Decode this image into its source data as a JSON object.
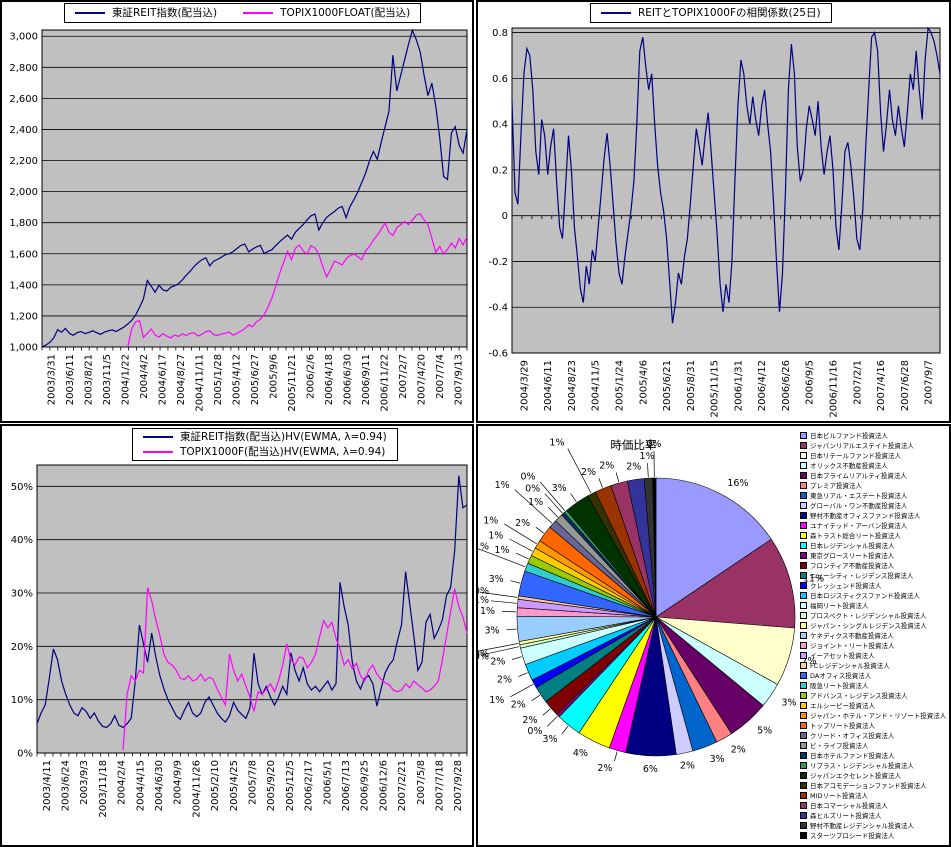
{
  "colors": {
    "plot_bg": "#C0C0C0",
    "grid": "#000000",
    "navy": "#000080",
    "magenta": "#FF00FF",
    "panel_bg": "#FFFFFF"
  },
  "chart_data": [
    {
      "id": "price-index",
      "type": "line",
      "legend": [
        {
          "label": "東証REIT指数(配当込)",
          "color": "#000080"
        },
        {
          "label": "TOPIX1000FLOAT(配当込)",
          "color": "#FF00FF"
        }
      ],
      "ylim": [
        1000,
        3040
      ],
      "grid": true,
      "x_minor_ticks": 54,
      "y_ticks": [
        {
          "v": 3000,
          "t": "3,000"
        },
        {
          "v": 2800,
          "t": "2,800"
        },
        {
          "v": 2600,
          "t": "2,600"
        },
        {
          "v": 2400,
          "t": "2,400"
        },
        {
          "v": 2200,
          "t": "2,200"
        },
        {
          "v": 2000,
          "t": "2,000"
        },
        {
          "v": 1800,
          "t": "1,800"
        },
        {
          "v": 1600,
          "t": "1,600"
        },
        {
          "v": 1400,
          "t": "1,400"
        },
        {
          "v": 1200,
          "t": "1,200"
        },
        {
          "v": 1000,
          "t": "1,000"
        }
      ],
      "x_tick_labels": [
        "2003/3/31",
        "2003/6/11",
        "2003/8/21",
        "2003/11/5",
        "2004/1/22",
        "2004/4/2",
        "2004/6/17",
        "2004/8/27",
        "2004/11/11",
        "2005/1/28",
        "2005/4/12",
        "2005/6/27",
        "2005/9/6",
        "2005/11/21",
        "2006/2/6",
        "2006/4/18",
        "2006/6/30",
        "2006/9/11",
        "2006/11/22",
        "2007/2/7",
        "2007/4/20",
        "2007/7/4",
        "2007/9/13"
      ],
      "series": [
        {
          "name": "東証REIT指数(配当込)",
          "color": "#000080",
          "values": [
            1000,
            1012,
            1030,
            1058,
            1112,
            1095,
            1120,
            1088,
            1075,
            1092,
            1100,
            1086,
            1094,
            1104,
            1092,
            1082,
            1095,
            1104,
            1110,
            1100,
            1114,
            1128,
            1148,
            1172,
            1205,
            1255,
            1308,
            1428,
            1392,
            1352,
            1398,
            1368,
            1360,
            1384,
            1394,
            1408,
            1432,
            1462,
            1488,
            1518,
            1542,
            1562,
            1574,
            1522,
            1552,
            1564,
            1578,
            1594,
            1600,
            1614,
            1634,
            1654,
            1662,
            1612,
            1630,
            1644,
            1654,
            1602,
            1616,
            1626,
            1654,
            1678,
            1700,
            1720,
            1694,
            1738,
            1764,
            1788,
            1818,
            1844,
            1856,
            1752,
            1798,
            1834,
            1854,
            1872,
            1894,
            1904,
            1832,
            1904,
            1948,
            1998,
            2058,
            2118,
            2198,
            2258,
            2208,
            2318,
            2418,
            2518,
            2878,
            2648,
            2748,
            2848,
            2948,
            3038,
            2978,
            2898,
            2748,
            2618,
            2698,
            2548,
            2348,
            2098,
            2078,
            2378,
            2418,
            2298,
            2248,
            2398
          ]
        },
        {
          "name": "TOPIX1000FLOAT(配当込)",
          "color": "#FF00FF",
          "values": [
            null,
            null,
            null,
            null,
            null,
            null,
            null,
            null,
            null,
            null,
            null,
            null,
            null,
            null,
            null,
            null,
            null,
            null,
            null,
            null,
            null,
            null,
            1000,
            1118,
            1162,
            1170,
            1062,
            1088,
            1115,
            1078,
            1064,
            1086,
            1070,
            1058,
            1078,
            1068,
            1084,
            1074,
            1088,
            1092,
            1070,
            1082,
            1098,
            1104,
            1080,
            1074,
            1084,
            1088,
            1096,
            1076,
            1088,
            1102,
            1118,
            1142,
            1130,
            1162,
            1178,
            1210,
            1258,
            1316,
            1396,
            1476,
            1546,
            1616,
            1562,
            1636,
            1656,
            1618,
            1598,
            1652,
            1638,
            1598,
            1518,
            1452,
            1498,
            1552,
            1542,
            1528,
            1568,
            1588,
            1598,
            1582,
            1562,
            1618,
            1648,
            1688,
            1718,
            1758,
            1798,
            1738,
            1718,
            1768,
            1788,
            1808,
            1788,
            1818,
            1848,
            1858,
            1818,
            1788,
            1698,
            1608,
            1648,
            1598,
            1628,
            1668,
            1638,
            1698,
            1658,
            1708
          ]
        }
      ]
    },
    {
      "id": "correlation",
      "type": "line",
      "legend": [
        {
          "label": "REITとTOPIX1000Fの相関係数(25日)",
          "color": "#000080"
        }
      ],
      "ylim": [
        -0.6,
        0.82
      ],
      "axis_y": 0,
      "grid": true,
      "x_minor_ticks": 43,
      "y_ticks": [
        {
          "v": 0.8,
          "t": "0.8"
        },
        {
          "v": 0.6,
          "t": "0.6"
        },
        {
          "v": 0.4,
          "t": "0.4"
        },
        {
          "v": 0.2,
          "t": "0.2"
        },
        {
          "v": 0,
          "t": "0"
        },
        {
          "v": -0.2,
          "t": "-0.2"
        },
        {
          "v": -0.4,
          "t": "-0.4"
        },
        {
          "v": -0.6,
          "t": "-0.6"
        }
      ],
      "x_tick_labels": [
        "2004/3/29",
        "2004/6/11",
        "2004/8/23",
        "2004/11/5",
        "2005/1/24",
        "2005/4/6",
        "2005/6/21",
        "2005/8/31",
        "2005/11/15",
        "2006/1/31",
        "2006/4/12",
        "2006/6/26",
        "2006/9/5",
        "2006/11/16",
        "2007/2/1",
        "2007/4/16",
        "2007/6/28",
        "2007/9/7"
      ],
      "series": [
        {
          "name": "REITとTOPIX1000Fの相関係数(25日)",
          "color": "#000080",
          "values": [
            0.5,
            0.1,
            0.05,
            0.35,
            0.62,
            0.73,
            0.7,
            0.55,
            0.28,
            0.18,
            0.42,
            0.35,
            0.18,
            0.3,
            0.38,
            0.15,
            -0.05,
            -0.1,
            0.12,
            0.35,
            0.2,
            -0.05,
            -0.18,
            -0.32,
            -0.38,
            -0.22,
            -0.3,
            -0.15,
            -0.2,
            -0.05,
            0.1,
            0.25,
            0.36,
            0.22,
            0.05,
            -0.12,
            -0.25,
            -0.3,
            -0.18,
            -0.08,
            0.02,
            0.15,
            0.4,
            0.72,
            0.78,
            0.65,
            0.55,
            0.62,
            0.4,
            0.22,
            0.1,
            0.02,
            -0.1,
            -0.28,
            -0.47,
            -0.38,
            -0.25,
            -0.3,
            -0.18,
            -0.1,
            0.05,
            0.22,
            0.38,
            0.3,
            0.22,
            0.35,
            0.45,
            0.28,
            0.1,
            -0.08,
            -0.3,
            -0.42,
            -0.3,
            -0.38,
            -0.2,
            0.15,
            0.48,
            0.68,
            0.62,
            0.48,
            0.4,
            0.52,
            0.42,
            0.35,
            0.48,
            0.55,
            0.4,
            0.28,
            0.05,
            -0.2,
            -0.42,
            -0.25,
            0.1,
            0.55,
            0.75,
            0.62,
            0.3,
            0.15,
            0.2,
            0.38,
            0.48,
            0.42,
            0.35,
            0.5,
            0.3,
            0.18,
            0.28,
            0.35,
            0.2,
            -0.05,
            -0.15,
            0.05,
            0.28,
            0.32,
            0.22,
            0.08,
            -0.1,
            -0.15,
            0.02,
            0.3,
            0.55,
            0.78,
            0.8,
            0.72,
            0.45,
            0.28,
            0.4,
            0.55,
            0.42,
            0.35,
            0.48,
            0.38,
            0.3,
            0.45,
            0.62,
            0.55,
            0.72,
            0.55,
            0.42,
            0.68,
            0.82,
            0.8,
            0.76,
            0.7,
            0.62
          ]
        }
      ]
    },
    {
      "id": "historical-volatility",
      "type": "line",
      "legend": [
        {
          "label": "東証REIT指数(配当込)HV(EWMA, λ=0.94)",
          "color": "#000080"
        },
        {
          "label": "TOPIX1000F(配当込)HV(EWMA, λ=0.94)",
          "color": "#FF00FF"
        }
      ],
      "ylim": [
        0,
        54
      ],
      "grid": true,
      "x_minor_ticks": 54,
      "y_ticks": [
        {
          "v": 50,
          "t": "50%"
        },
        {
          "v": 40,
          "t": "40%"
        },
        {
          "v": 30,
          "t": "30%"
        },
        {
          "v": 20,
          "t": "20%"
        },
        {
          "v": 10,
          "t": "10%"
        },
        {
          "v": 0,
          "t": "0%"
        }
      ],
      "x_tick_labels": [
        "2003/4/11",
        "2003/6/24",
        "2003/9/3",
        "2003/11/18",
        "2004/2/4",
        "2004/4/15",
        "2004/6/30",
        "2004/9/9",
        "2004/11/26",
        "2005/2/10",
        "2005/4/25",
        "2005/7/8",
        "2005/9/20",
        "2005/12/5",
        "2006/2/17",
        "2006/5/1",
        "2006/7/13",
        "2006/9/25",
        "2006/12/6",
        "2007/2/21",
        "2007/5/8",
        "2007/7/18",
        "2007/9/28"
      ],
      "series": [
        {
          "name": "東証REIT指数(配当込)HV(EWMA, λ=0.94)",
          "color": "#000080",
          "values": [
            5.5,
            7.5,
            9,
            14,
            19.5,
            17.5,
            13.5,
            11,
            9,
            7.5,
            7,
            8.5,
            7.8,
            6.5,
            7.5,
            6,
            5,
            4.8,
            5.5,
            7,
            5.2,
            4.8,
            5.5,
            6.5,
            13.5,
            24,
            20.5,
            17,
            22.5,
            18,
            14.5,
            12,
            10,
            8.5,
            7,
            6.3,
            8,
            9.5,
            7.5,
            6.8,
            7.5,
            9.5,
            10.5,
            9,
            7.5,
            6.5,
            5.8,
            7,
            9.5,
            8,
            7.2,
            6.5,
            8.5,
            18.7,
            13,
            11,
            12.5,
            10.5,
            9,
            10.5,
            12.5,
            11,
            18.8,
            15.5,
            13.5,
            16,
            13,
            11.8,
            12.5,
            11.5,
            12.5,
            13.5,
            11.8,
            13,
            32,
            27.5,
            24,
            17,
            13.5,
            12,
            14,
            14.5,
            13,
            8.8,
            12,
            15,
            16.5,
            17.5,
            21,
            24,
            34,
            28,
            22,
            15.5,
            17,
            24.5,
            26,
            21.5,
            23,
            25,
            29.5,
            31,
            38,
            52,
            46,
            46.5
          ]
        },
        {
          "name": "TOPIX1000F(配当込)HV(EWMA, λ=0.94)",
          "color": "#FF00FF",
          "values": [
            null,
            null,
            null,
            null,
            null,
            null,
            null,
            null,
            null,
            null,
            null,
            null,
            null,
            null,
            null,
            null,
            null,
            null,
            null,
            null,
            null,
            0.5,
            11,
            14.5,
            13.5,
            15.5,
            15,
            31,
            28.5,
            25,
            22,
            18.5,
            17,
            16.5,
            15.5,
            14,
            13.8,
            14.5,
            13.5,
            13.8,
            14.8,
            13.5,
            14.2,
            13.8,
            12,
            10.5,
            9,
            18.5,
            15.5,
            13.5,
            14.8,
            12.5,
            10.5,
            7.8,
            11.5,
            11,
            12,
            13,
            11.5,
            13.5,
            16.5,
            20.5,
            17.5,
            16.5,
            18,
            17.8,
            16,
            17,
            18.5,
            21.8,
            24.8,
            23.5,
            24.5,
            21.5,
            19.5,
            16.5,
            17.5,
            15.8,
            16.8,
            14.5,
            13.5,
            15.5,
            16.5,
            14.8,
            13.8,
            13.2,
            12.8,
            11.8,
            11.5,
            11.8,
            13,
            12.2,
            13.5,
            12.8,
            12.2,
            11.5,
            11.8,
            12.5,
            13.5,
            17.5,
            22,
            26.5,
            30.8,
            27.5,
            25.5,
            22.5
          ]
        }
      ]
    },
    {
      "id": "market-cap-pie",
      "type": "pie",
      "title": "時価比率",
      "legend_position": "right",
      "slices": [
        {
          "label": "日本ビルファンド投資法人",
          "pct": 16,
          "color": "#9999FF"
        },
        {
          "label": "ジャパンリアルエステイト投資法人",
          "pct": 11,
          "color": "#993366"
        },
        {
          "label": "日本リテールファンド投資法人",
          "pct": 7,
          "color": "#FFFFCC"
        },
        {
          "label": "オリックス不動産投資法人",
          "pct": 3,
          "color": "#CCFFFF"
        },
        {
          "label": "日本プライムリアルティ投資法人",
          "pct": 5,
          "color": "#660066"
        },
        {
          "label": "プレミア投資法人",
          "pct": 2,
          "color": "#FF8080"
        },
        {
          "label": "東急リアル・エステート投資法人",
          "pct": 3,
          "color": "#0066CC"
        },
        {
          "label": "グローバル・ワン不動産投資法人",
          "pct": 2,
          "color": "#CCCCFF"
        },
        {
          "label": "野村不動産オフィスファンド投資法人",
          "pct": 6,
          "color": "#000080"
        },
        {
          "label": "ユナイテッド・アーバン投資法人",
          "pct": 2,
          "color": "#FF00FF"
        },
        {
          "label": "森トラスト総合リート投資法人",
          "pct": 4,
          "color": "#FFFF00"
        },
        {
          "label": "日本レジデンシャル投資法人",
          "pct": 3,
          "color": "#00FFFF"
        },
        {
          "label": "東京グロースリート投資法人",
          "pct": 0,
          "color": "#800080"
        },
        {
          "label": "フロンティア不動産投資法人",
          "pct": 2,
          "color": "#800000"
        },
        {
          "label": "ニューシティ・レジデンス投資法人",
          "pct": 2,
          "color": "#008080"
        },
        {
          "label": "クレッシェンド投資法人",
          "pct": 1,
          "color": "#0000FF"
        },
        {
          "label": "日本ロジスティクスファンド投資法人",
          "pct": 2,
          "color": "#00CCFF"
        },
        {
          "label": "福岡リート投資法人",
          "pct": 2,
          "color": "#CCFFFF"
        },
        {
          "label": "プロスペクト・レジデンシャル投資法人",
          "pct": 0,
          "color": "#CCFFCC"
        },
        {
          "label": "ジャパン・シングルレジデンス投資法人",
          "pct": 0,
          "color": "#FFFF99"
        },
        {
          "label": "ケネディクス不動産投資法人",
          "pct": 3,
          "color": "#99CCFF"
        },
        {
          "label": "ジョイント・リート投資法人",
          "pct": 1,
          "color": "#FF99CC"
        },
        {
          "label": "イーアセット投資法人",
          "pct": 1,
          "color": "#CC99FF"
        },
        {
          "label": "FCレジデンシャル投資法人",
          "pct": 0,
          "color": "#FFCC99"
        },
        {
          "label": "DAオフィス投資法人",
          "pct": 3,
          "color": "#3366FF"
        },
        {
          "label": "阪急リート投資法人",
          "pct": 1,
          "color": "#33CCCC"
        },
        {
          "label": "アドバンス・レジデンス投資法人",
          "pct": 1,
          "color": "#99CC00"
        },
        {
          "label": "エルシーピー投資法人",
          "pct": 1,
          "color": "#FFCC00"
        },
        {
          "label": "ジャパン・ホテル・アンド・リゾート投資法人",
          "pct": 1,
          "color": "#FF9900"
        },
        {
          "label": "トップリート投資法人",
          "pct": 2,
          "color": "#FF6600"
        },
        {
          "label": "クリード・オフィス投資法人",
          "pct": 1,
          "color": "#666699"
        },
        {
          "label": "ビ・ライフ投資法人",
          "pct": 1,
          "color": "#969696"
        },
        {
          "label": "日本ホテルファンド投資法人",
          "pct": 0,
          "color": "#003366"
        },
        {
          "label": "リプラス・レジデンシャル投資法人",
          "pct": 0,
          "color": "#339966"
        },
        {
          "label": "ジャパンエクセレント投資法人",
          "pct": 3,
          "color": "#003300"
        },
        {
          "label": "日本アコモデーションファンド投資法人",
          "pct": 1,
          "color": "#333300"
        },
        {
          "label": "MIDリート投資法人",
          "pct": 2,
          "color": "#993300"
        },
        {
          "label": "日本コマーシャル投資法人",
          "pct": 2,
          "color": "#993366"
        },
        {
          "label": "森ヒルズリート投資法人",
          "pct": 2,
          "color": "#333399"
        },
        {
          "label": "野村不動産レジデンシャル投資法人",
          "pct": 1,
          "color": "#333333"
        },
        {
          "label": "スターツプロシード投資法人",
          "pct": 0,
          "color": "#000000"
        }
      ]
    }
  ]
}
